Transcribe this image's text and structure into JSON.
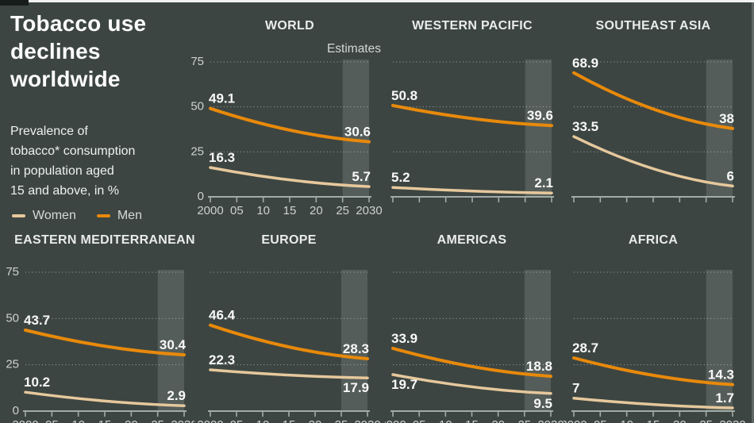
{
  "header": {
    "title_lines": [
      "Tobacco use",
      "declines",
      "worldwide"
    ],
    "subtitle_lines": [
      "Prevalence of",
      "tobacco* consumption",
      "in population aged",
      "15 and above, in %"
    ]
  },
  "legend": {
    "items": [
      {
        "name": "Women",
        "color": "#e6c89c"
      },
      {
        "name": "Men",
        "color": "#e8890b"
      }
    ]
  },
  "estimates_label": "Estimates",
  "axis": {
    "y_tick_labels": [
      "75",
      "50",
      "25",
      "0"
    ],
    "x_tick_labels": [
      "2000",
      "05",
      "10",
      "15",
      "20",
      "25",
      "2030"
    ]
  },
  "chart_data": {
    "type": "line",
    "title": "Tobacco use declines worldwide",
    "subtitle": "Prevalence of tobacco* consumption in population aged 15 and above, in %",
    "unit": "%",
    "x_range": [
      2000,
      2030
    ],
    "estimates_band_x": [
      2025,
      2030
    ],
    "ylim": [
      0,
      75
    ],
    "grid_y_values": [
      75,
      50,
      25
    ],
    "series_names": [
      "Men",
      "Women"
    ],
    "panels": [
      {
        "region": "WORLD",
        "men": {
          "start": 49.1,
          "end": 30.6
        },
        "women": {
          "start": 16.3,
          "end": 5.7
        }
      },
      {
        "region": "WESTERN PACIFIC",
        "men": {
          "start": 50.8,
          "end": 39.6
        },
        "women": {
          "start": 5.2,
          "end": 2.1
        }
      },
      {
        "region": "SOUTHEAST ASIA",
        "men": {
          "start": 68.9,
          "end": 38
        },
        "women": {
          "start": 33.5,
          "end": 6
        }
      },
      {
        "region": "EASTERN MEDITERRANEAN",
        "men": {
          "start": 43.7,
          "end": 30.4
        },
        "women": {
          "start": 10.2,
          "end": 2.9
        }
      },
      {
        "region": "EUROPE",
        "men": {
          "start": 46.4,
          "end": 28.3
        },
        "women": {
          "start": 22.3,
          "end": 17.9
        },
        "women_label_pos": {
          "end": "below"
        }
      },
      {
        "region": "AMERICAS",
        "men": {
          "start": 33.9,
          "end": 18.8
        },
        "women": {
          "start": 19.7,
          "end": 9.5
        },
        "women_label_pos": {
          "start": "below",
          "end": "below"
        }
      },
      {
        "region": "AFRICA",
        "men": {
          "start": 28.7,
          "end": 14.3
        },
        "women": {
          "start": 7,
          "end": 1.7
        }
      }
    ]
  }
}
